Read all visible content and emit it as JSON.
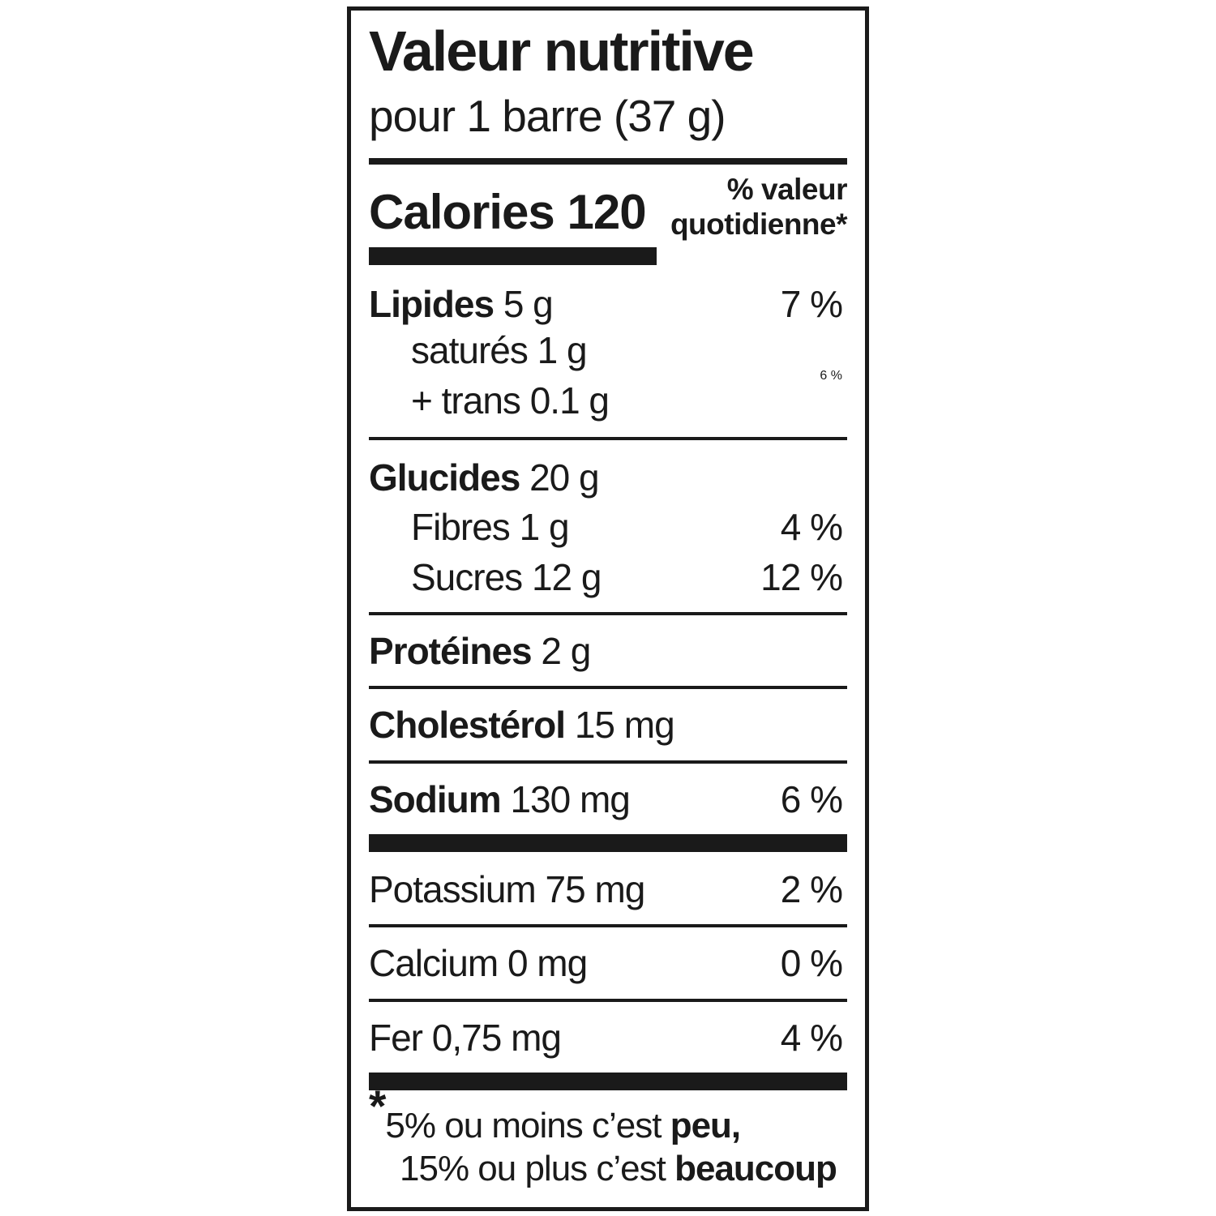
{
  "label": {
    "title": "Valeur nutritive",
    "serving": "pour 1 barre (37 g)",
    "calories": {
      "label": "Calories",
      "value": "120"
    },
    "dv_header": {
      "line1": "% valeur",
      "line2": "quotidienne*"
    },
    "nutrients": [
      {
        "name": "Lipides",
        "amount": "5 g",
        "dv": "7 %"
      },
      {
        "name": "saturés",
        "amount": "1 g",
        "dv": ""
      },
      {
        "name": "+ trans",
        "amount": "0.1 g",
        "dv": "6 %"
      },
      {
        "name": "Glucides",
        "amount": "20 g",
        "dv": ""
      },
      {
        "name": "Fibres",
        "amount": "1 g",
        "dv": "4 %"
      },
      {
        "name": "Sucres",
        "amount": "12 g",
        "dv": "12 %"
      },
      {
        "name": "Protéines",
        "amount": "2 g",
        "dv": ""
      },
      {
        "name": "Cholestérol",
        "amount": "15 mg",
        "dv": ""
      },
      {
        "name": "Sodium",
        "amount": "130 mg",
        "dv": "6 %"
      },
      {
        "name": "Potassium",
        "amount": "75 mg",
        "dv": "2 %"
      },
      {
        "name": "Calcium",
        "amount": "0 mg",
        "dv": "0 %"
      },
      {
        "name": "Fer",
        "amount": "0,75 mg",
        "dv": "4 %"
      }
    ],
    "footnote": {
      "star": "*",
      "line1": "5% ou moins c’est ",
      "line1_bold": "peu,",
      "line2": "15% ou plus c’est ",
      "line2_bold": "beaucoup"
    },
    "colors": {
      "ink": "#1a1a1a",
      "background": "#ffffff"
    }
  }
}
